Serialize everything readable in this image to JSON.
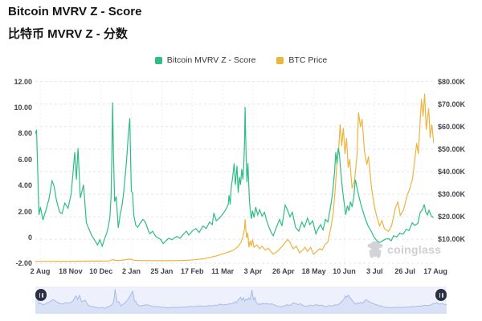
{
  "header": {
    "title": "Bitcoin MVRV Z - Score",
    "subtitle_zh": "比特币 MVRV Z - 分数"
  },
  "legend": {
    "items": [
      {
        "label": "Bitcoin MVRV Z - Score",
        "color": "#2EBD85"
      },
      {
        "label": "BTC Price",
        "color": "#ECB53E"
      }
    ]
  },
  "watermark": {
    "text": "coinglass",
    "icon": "gorilla-logo",
    "color": "#d2d3d9"
  },
  "colors": {
    "grid": "#e6e6ea",
    "grid_vertical": "#efeff3",
    "nav_fill": "#d9e1f6",
    "nav_line": "#a9bbe8",
    "nav_bg": "#eef1fb",
    "handle": "#2b3142"
  },
  "chart_data": {
    "type": "line",
    "title": "Bitcoin MVRV Z - Score",
    "legend_position": "top",
    "grid": "horizontal-dashed",
    "left_axis": {
      "title": "MVRV Z-Score",
      "ticks": [
        "12.00",
        "10.00",
        "8.00",
        "6.00",
        "4.00",
        "2.00",
        "0",
        "-2.00"
      ],
      "range": [
        -2,
        12
      ]
    },
    "right_axis": {
      "title": "BTC Price (USD)",
      "ticks": [
        "$80.00K",
        "$70.00K",
        "$60.00K",
        "$50.00K",
        "$40.00K",
        "$30.00K",
        "$20.00K",
        "$10.00K"
      ],
      "range_k_usd": [
        0,
        80
      ]
    },
    "x_axis": {
      "ticks": [
        "2 Aug",
        "18 Nov",
        "10 Dec",
        "2 Jan",
        "25 Jan",
        "17 Feb",
        "11 Mar",
        "3 Apr",
        "26 Apr",
        "18 May",
        "10 Jun",
        "3 Jul",
        "26 Jul",
        "17 Aug"
      ]
    },
    "series": [
      {
        "name": "Bitcoin MVRV Z - Score",
        "color": "#2EBD85",
        "axis": "left",
        "points": [
          [
            0,
            7.9
          ],
          [
            0.3,
            8.2
          ],
          [
            0.9,
            1.7
          ],
          [
            1.3,
            2.3
          ],
          [
            1.9,
            1.3
          ],
          [
            2.7,
            2.1
          ],
          [
            3.4,
            2.9
          ],
          [
            4.2,
            4.3
          ],
          [
            4.7,
            3.9
          ],
          [
            5.3,
            2.8
          ],
          [
            6.1,
            1.9
          ],
          [
            6.7,
            1.8
          ],
          [
            7.4,
            2.6
          ],
          [
            8.2,
            2.2
          ],
          [
            9,
            3.3
          ],
          [
            9.9,
            6.5
          ],
          [
            10.3,
            4.4
          ],
          [
            10.7,
            6.8
          ],
          [
            11.3,
            3
          ],
          [
            12.1,
            4
          ],
          [
            12.8,
            1.1
          ],
          [
            13.6,
            0.5
          ],
          [
            14.2,
            0.1
          ],
          [
            15,
            -0.3
          ],
          [
            15.6,
            -0.6
          ],
          [
            16.2,
            -0.2
          ],
          [
            16.8,
            -0.7
          ],
          [
            17.3,
            -0.2
          ],
          [
            17.9,
            0.3
          ],
          [
            18.3,
            0.8
          ],
          [
            18.7,
            1.5
          ],
          [
            19,
            3
          ],
          [
            19.2,
            6
          ],
          [
            19.4,
            10.3
          ],
          [
            19.6,
            6.5
          ],
          [
            19.9,
            2.7
          ],
          [
            20.3,
            3.1
          ],
          [
            20.8,
            0.7
          ],
          [
            21.3,
            1.7
          ],
          [
            21.7,
            2.3
          ],
          [
            22.1,
            3.2
          ],
          [
            22.5,
            4.5
          ],
          [
            22.9,
            5.9
          ],
          [
            23.3,
            7.7
          ],
          [
            23.7,
            9.1
          ],
          [
            23.9,
            6.2
          ],
          [
            24.1,
            3.5
          ],
          [
            24.4,
            3.4
          ],
          [
            24.7,
            1.7
          ],
          [
            25.2,
            0.9
          ],
          [
            25.7,
            0.75
          ],
          [
            26.4,
            1.1
          ],
          [
            27,
            1.35
          ],
          [
            27.6,
            1.15
          ],
          [
            28.4,
            0.45
          ],
          [
            28.8,
            0.25
          ],
          [
            29.4,
            0.45
          ],
          [
            30.2,
            0.05
          ],
          [
            31,
            -0.1
          ],
          [
            31.5,
            -0.2
          ],
          [
            32.1,
            -0.5
          ],
          [
            32.9,
            -0.25
          ],
          [
            33.5,
            -0.1
          ],
          [
            34.3,
            -0.2
          ],
          [
            35.5,
            0.05
          ],
          [
            36.3,
            -0.1
          ],
          [
            37.1,
            0.2
          ],
          [
            37.9,
            0.45
          ],
          [
            38.5,
            0.15
          ],
          [
            39.5,
            0.5
          ],
          [
            40.3,
            0.65
          ],
          [
            41.1,
            0.35
          ],
          [
            42.1,
            0.85
          ],
          [
            42.9,
            0.65
          ],
          [
            43.7,
            1.15
          ],
          [
            44.4,
            0.95
          ],
          [
            44.8,
            1.85
          ],
          [
            45.4,
            1.25
          ],
          [
            46.2,
            1.45
          ],
          [
            47,
            1.75
          ],
          [
            47.8,
            2.1
          ],
          [
            48.4,
            2.5
          ],
          [
            48.6,
            3.2
          ],
          [
            48.9,
            2.5
          ],
          [
            49.2,
            3.9
          ],
          [
            49.5,
            4.5
          ],
          [
            49.9,
            5.65
          ],
          [
            50.2,
            4
          ],
          [
            50.6,
            5.45
          ],
          [
            50.9,
            3.4
          ],
          [
            51.2,
            4.6
          ],
          [
            51.5,
            4
          ],
          [
            51.8,
            5.2
          ],
          [
            52.1,
            4.4
          ],
          [
            52.35,
            5.9
          ],
          [
            52.5,
            7.3
          ],
          [
            52.65,
            9.95
          ],
          [
            52.9,
            6.1
          ],
          [
            53.1,
            4.2
          ],
          [
            53.35,
            5.65
          ],
          [
            53.7,
            2.9
          ],
          [
            53.9,
            2.2
          ],
          [
            54.2,
            1.4
          ],
          [
            54.5,
            2
          ],
          [
            54.9,
            1.5
          ],
          [
            55.3,
            2.3
          ],
          [
            55.8,
            1.7
          ],
          [
            56.3,
            2.1
          ],
          [
            56.9,
            1.6
          ],
          [
            57.5,
            1.9
          ],
          [
            58.1,
            1.2
          ],
          [
            58.7,
            0.7
          ],
          [
            59.2,
            0.35
          ],
          [
            59.7,
            0.1
          ],
          [
            60.5,
            0.75
          ],
          [
            61.3,
            1.35
          ],
          [
            61.9,
            0.85
          ],
          [
            62.7,
            2.45
          ],
          [
            63.3,
            2.05
          ],
          [
            63.9,
            1.55
          ],
          [
            64.5,
            1.9
          ],
          [
            65.3,
            0.75
          ],
          [
            66.1,
            0.45
          ],
          [
            66.9,
            1.15
          ],
          [
            67.5,
            0.75
          ],
          [
            68.3,
            1.45
          ],
          [
            68.9,
            0.95
          ],
          [
            69.6,
            1.25
          ],
          [
            70.4,
            0.25
          ],
          [
            71,
            0.65
          ],
          [
            71.6,
            0.95
          ],
          [
            72.2,
            0.55
          ],
          [
            72.8,
            1.35
          ],
          [
            73.4,
            1.15
          ],
          [
            74,
            2.15
          ],
          [
            74.4,
            2.9
          ],
          [
            74.8,
            4
          ],
          [
            75.1,
            5
          ],
          [
            75.4,
            6.5
          ],
          [
            75.7,
            5.6
          ],
          [
            76,
            6.8
          ],
          [
            76.3,
            6.4
          ],
          [
            76.7,
            4.9
          ],
          [
            77.1,
            3.6
          ],
          [
            77.5,
            2.6
          ],
          [
            77.9,
            1.7
          ],
          [
            78.3,
            2.4
          ],
          [
            78.7,
            2
          ],
          [
            79.1,
            2.7
          ],
          [
            79.5,
            2.3
          ],
          [
            79.9,
            3
          ],
          [
            80.3,
            4.4
          ],
          [
            80.7,
            3.8
          ],
          [
            81.2,
            3.1
          ],
          [
            81.7,
            2.5
          ],
          [
            82.2,
            2
          ],
          [
            82.7,
            1.5
          ],
          [
            83.5,
            0.85
          ],
          [
            84.3,
            0.45
          ],
          [
            84.9,
            0.05
          ],
          [
            85.5,
            -0.2
          ],
          [
            86.3,
            -0.42
          ],
          [
            87.1,
            -0.3
          ],
          [
            87.9,
            -0.15
          ],
          [
            88.7,
            -0.12
          ],
          [
            89.3,
            -0.28
          ],
          [
            89.9,
            0.1
          ],
          [
            90.7,
            0
          ],
          [
            91.5,
            0.3
          ],
          [
            92.3,
            0.22
          ],
          [
            93.1,
            0.6
          ],
          [
            93.8,
            0.5
          ],
          [
            94.6,
            1.1
          ],
          [
            95.2,
            0.9
          ],
          [
            96,
            1.05
          ],
          [
            96.6,
            1.9
          ],
          [
            97.2,
            2.1
          ],
          [
            97.6,
            2.5
          ],
          [
            98,
            1.9
          ],
          [
            98.4,
            1.7
          ],
          [
            98.8,
            2.05
          ],
          [
            99.4,
            1.6
          ],
          [
            100,
            1.5
          ]
        ]
      },
      {
        "name": "BTC Price",
        "color": "#ECB53E",
        "axis": "right",
        "unit": "thousand USD",
        "points": [
          [
            0,
            0.1
          ],
          [
            4,
            0.12
          ],
          [
            8,
            0.15
          ],
          [
            12,
            0.18
          ],
          [
            16,
            0.22
          ],
          [
            18.5,
            0.3
          ],
          [
            19.4,
            0.9
          ],
          [
            20.2,
            0.5
          ],
          [
            21.5,
            0.55
          ],
          [
            23.8,
            1.1
          ],
          [
            24.6,
            0.65
          ],
          [
            26,
            0.5
          ],
          [
            28,
            0.45
          ],
          [
            30,
            0.42
          ],
          [
            32,
            0.4
          ],
          [
            34,
            0.42
          ],
          [
            36,
            0.45
          ],
          [
            38,
            0.55
          ],
          [
            40,
            0.8
          ],
          [
            42,
            1.2
          ],
          [
            44,
            1.9
          ],
          [
            45.6,
            2.6
          ],
          [
            47.2,
            3.5
          ],
          [
            48.6,
            4.3
          ],
          [
            49.8,
            5.2
          ],
          [
            50.8,
            6.5
          ],
          [
            51.6,
            8.5
          ],
          [
            52.1,
            11
          ],
          [
            52.5,
            14.5
          ],
          [
            52.65,
            18.7
          ],
          [
            53,
            10.4
          ],
          [
            53.3,
            12.7
          ],
          [
            53.6,
            6.3
          ],
          [
            53.9,
            9.2
          ],
          [
            54.2,
            6.8
          ],
          [
            54.5,
            9.8
          ],
          [
            54.9,
            6.3
          ],
          [
            55.6,
            7.4
          ],
          [
            56.3,
            5.7
          ],
          [
            56.9,
            6.8
          ],
          [
            57.7,
            5.1
          ],
          [
            58.5,
            5.9
          ],
          [
            59.1,
            4.5
          ],
          [
            59.7,
            3.3
          ],
          [
            60.5,
            4.2
          ],
          [
            61.3,
            5.5
          ],
          [
            62.3,
            7.5
          ],
          [
            63.3,
            9.8
          ],
          [
            63.9,
            8.6
          ],
          [
            64.7,
            5.7
          ],
          [
            65.5,
            6.8
          ],
          [
            66.3,
            3.9
          ],
          [
            67.1,
            5.1
          ],
          [
            67.7,
            6.3
          ],
          [
            68.3,
            4.5
          ],
          [
            69.1,
            6.3
          ],
          [
            69.8,
            3.3
          ],
          [
            70.6,
            4.5
          ],
          [
            71.4,
            5.7
          ],
          [
            72,
            5.1
          ],
          [
            72.6,
            7.4
          ],
          [
            73.4,
            8.6
          ],
          [
            74.2,
            15.1
          ],
          [
            74.8,
            22
          ],
          [
            75.3,
            33
          ],
          [
            75.7,
            44
          ],
          [
            76.1,
            49
          ],
          [
            76.5,
            60.5
          ],
          [
            76.9,
            51
          ],
          [
            77.3,
            59
          ],
          [
            77.7,
            47.5
          ],
          [
            78.1,
            54.5
          ],
          [
            78.5,
            41.5
          ],
          [
            78.9,
            45.2
          ],
          [
            79.5,
            32.3
          ],
          [
            80.1,
            35.8
          ],
          [
            80.7,
            46.4
          ],
          [
            81.1,
            65.8
          ],
          [
            81.6,
            59.4
          ],
          [
            82,
            62.9
          ],
          [
            82.6,
            48.7
          ],
          [
            83.2,
            42.8
          ],
          [
            83.6,
            46.4
          ],
          [
            84.4,
            32.2
          ],
          [
            85,
            25.1
          ],
          [
            85.6,
            20.4
          ],
          [
            86.4,
            15.8
          ],
          [
            87,
            18.1
          ],
          [
            87.6,
            14.5
          ],
          [
            88.6,
            13.3
          ],
          [
            89.4,
            15.7
          ],
          [
            90.4,
            24
          ],
          [
            91,
            26.3
          ],
          [
            91.6,
            20.4
          ],
          [
            92.4,
            22.8
          ],
          [
            93.4,
            29.8
          ],
          [
            94,
            32.2
          ],
          [
            94.7,
            36.9
          ],
          [
            95.7,
            52.3
          ],
          [
            96.1,
            47.5
          ],
          [
            96.9,
            71.7
          ],
          [
            97.3,
            64.1
          ],
          [
            97.7,
            74.1
          ],
          [
            98.1,
            58.2
          ],
          [
            98.7,
            67.6
          ],
          [
            99.1,
            54.6
          ],
          [
            99.5,
            60.5
          ],
          [
            100,
            52
          ]
        ]
      }
    ]
  }
}
